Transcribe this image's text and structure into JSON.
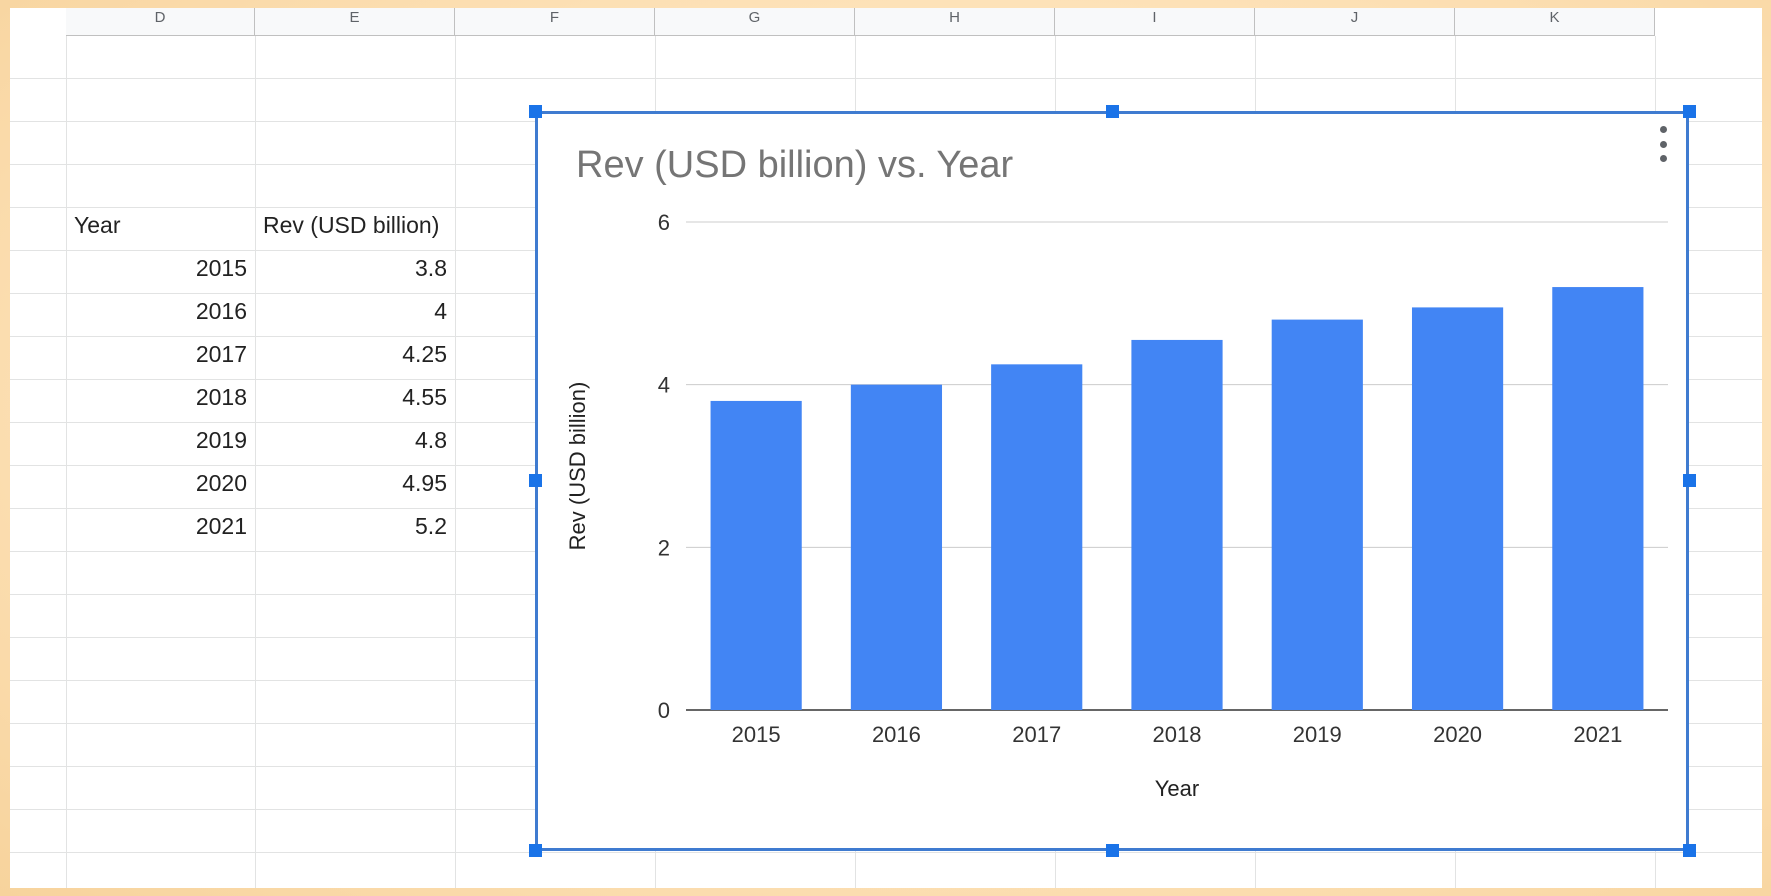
{
  "sheet": {
    "column_headers": [
      "D",
      "E",
      "F",
      "G",
      "H",
      "I",
      "J",
      "K"
    ],
    "table": {
      "headers": [
        "Year",
        "Rev (USD billion)"
      ],
      "rows": [
        [
          "2015",
          "3.8"
        ],
        [
          "2016",
          "4"
        ],
        [
          "2017",
          "4.25"
        ],
        [
          "2018",
          "4.55"
        ],
        [
          "2019",
          "4.8"
        ],
        [
          "2020",
          "4.95"
        ],
        [
          "2021",
          "5.2"
        ]
      ]
    }
  },
  "chart_data": {
    "type": "bar",
    "title": "Rev (USD billion) vs. Year",
    "xlabel": "Year",
    "ylabel": "Rev (USD billion)",
    "categories": [
      "2015",
      "2016",
      "2017",
      "2018",
      "2019",
      "2020",
      "2021"
    ],
    "values": [
      3.8,
      4,
      4.25,
      4.55,
      4.8,
      4.95,
      5.2
    ],
    "ylim": [
      0,
      6
    ],
    "yticks": [
      0,
      2,
      4,
      6
    ],
    "grid": true,
    "legend": "none",
    "bar_color": "#4285f4"
  },
  "colors": {
    "selection_border": "#3f7bd0",
    "handle": "#1a73e8",
    "gridline": "#e2e3e3"
  },
  "icons": {
    "chart_menu": "more-vert-icon"
  }
}
